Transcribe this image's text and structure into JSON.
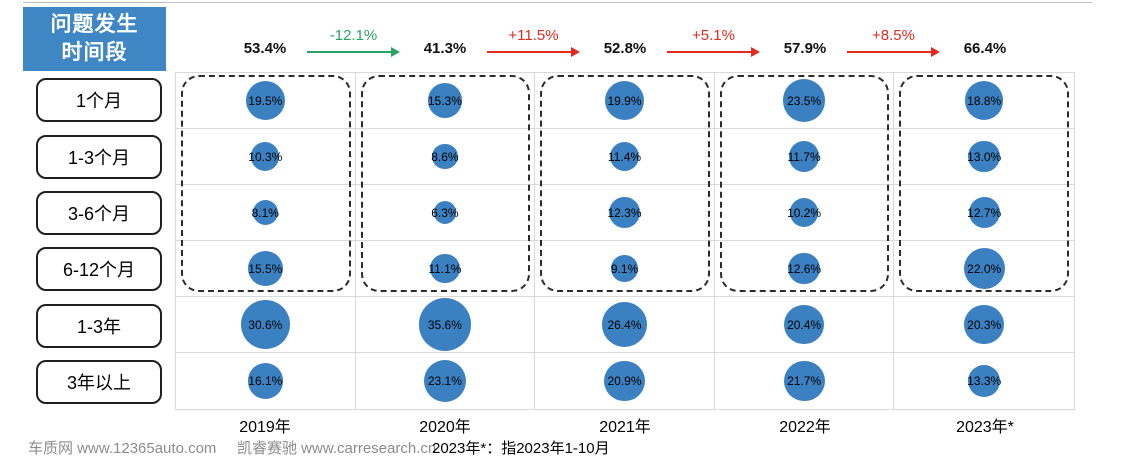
{
  "title": {
    "line1": "问题发生",
    "line2": "时间段"
  },
  "colors": {
    "header_blue": "#3E87C4",
    "bubble_blue": "#3B80C0",
    "increase_red": "#E02B20",
    "decrease_green": "#27A363",
    "grid_gray": "#D9D9D9",
    "muted_text": "#8C8C8C"
  },
  "chart_data": {
    "type": "bubble-matrix",
    "title": "问题发生时间段",
    "unit": "%",
    "row_categories": [
      "1个月",
      "1-3个月",
      "3-6个月",
      "6-12个月",
      "1-3年",
      "3年以上"
    ],
    "columns": [
      "2019年",
      "2020年",
      "2021年",
      "2022年",
      "2023年*"
    ],
    "series": [
      {
        "year": "2019年",
        "within_1yr_total": "53.4%",
        "values": [
          19.5,
          10.3,
          8.1,
          15.5,
          30.6,
          16.1
        ]
      },
      {
        "year": "2020年",
        "within_1yr_total": "41.3%",
        "values": [
          15.3,
          8.6,
          6.3,
          11.1,
          35.6,
          23.1
        ]
      },
      {
        "year": "2021年",
        "within_1yr_total": "52.8%",
        "values": [
          19.9,
          11.4,
          12.3,
          9.1,
          26.4,
          20.9
        ]
      },
      {
        "year": "2022年",
        "within_1yr_total": "57.9%",
        "values": [
          23.5,
          11.7,
          10.2,
          12.6,
          20.4,
          21.7
        ]
      },
      {
        "year": "2023年*",
        "within_1yr_total": "66.4%",
        "values": [
          18.8,
          13.0,
          12.7,
          22.0,
          20.3,
          13.3
        ]
      }
    ],
    "changes": [
      {
        "label": "-12.1%",
        "trend": "decrease"
      },
      {
        "label": "+11.5%",
        "trend": "increase"
      },
      {
        "label": "+5.1%",
        "trend": "increase"
      },
      {
        "label": "+8.5%",
        "trend": "increase"
      }
    ],
    "grouping_note": "dashed box groups rows 1个月 through 6-12个月 (within 1 year); yearly totals above are the sum of those four rows"
  },
  "footer": {
    "source_left": "车质网 www.12365auto.com",
    "source_mid": "凯睿赛驰 www.carresearch.cn",
    "note": "2023年*：指2023年1-10月"
  }
}
